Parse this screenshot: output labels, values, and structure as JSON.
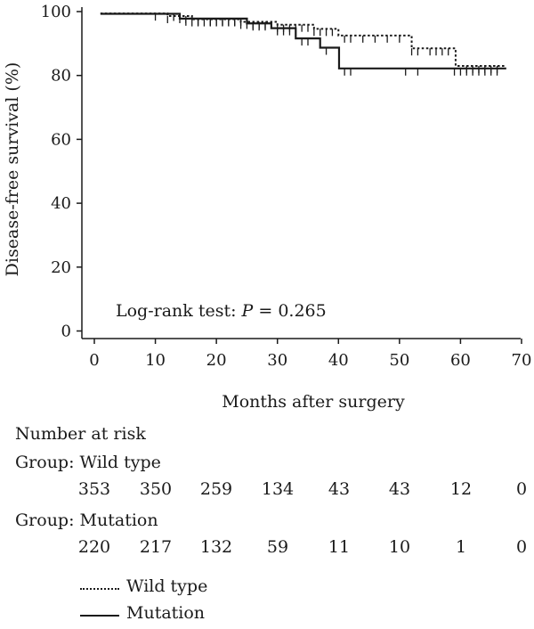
{
  "chart_data": {
    "type": "line",
    "xlabel": "Months after surgery",
    "ylabel": "Disease-free survival (%)",
    "xlim": [
      0,
      70
    ],
    "ylim": [
      0,
      100
    ],
    "xticks": [
      "0",
      "10",
      "20",
      "30",
      "40",
      "50",
      "60",
      "70"
    ],
    "yticks": [
      "0",
      "20",
      "40",
      "60",
      "80",
      "100"
    ],
    "grid": false,
    "annotation": {
      "prefix": "Log-rank test: ",
      "p": "P",
      "suffix": " = 0.265"
    },
    "series": [
      {
        "name": "Wild type",
        "style": "dotted",
        "color": "#1a1a1a",
        "steps": [
          [
            1,
            99.4
          ],
          [
            10,
            99.4
          ],
          [
            12,
            98.6
          ],
          [
            16,
            97.6
          ],
          [
            24,
            96.8
          ],
          [
            30,
            95.9
          ],
          [
            36,
            94.6
          ],
          [
            40,
            92.5
          ],
          [
            51,
            92.5
          ],
          [
            52,
            88.5
          ],
          [
            59,
            88.5
          ],
          [
            59.2,
            83
          ],
          [
            67.5,
            83
          ]
        ],
        "censors": [
          10,
          12,
          14,
          15,
          16,
          17,
          18,
          19,
          20,
          21,
          22,
          23,
          24,
          25,
          26,
          27,
          28,
          29,
          30,
          31,
          32,
          33,
          34,
          35,
          36,
          37,
          38,
          39,
          41,
          42,
          44,
          46,
          48,
          50,
          52,
          53,
          55,
          56,
          57,
          58,
          61,
          62,
          63,
          64,
          65,
          66
        ]
      },
      {
        "name": "Mutation",
        "style": "solid",
        "color": "#1a1a1a",
        "steps": [
          [
            1,
            99.3
          ],
          [
            12,
            99.3
          ],
          [
            14,
            97.8
          ],
          [
            25,
            96.3
          ],
          [
            29,
            94.8
          ],
          [
            33,
            91.6
          ],
          [
            37,
            88.7
          ],
          [
            40,
            88.7
          ],
          [
            40.1,
            82.2
          ],
          [
            67.5,
            82.2
          ]
        ],
        "censors": [
          13,
          15,
          17,
          19,
          20,
          21,
          22,
          23,
          24,
          26,
          27,
          28,
          30,
          31,
          32,
          34,
          35,
          38,
          41,
          42,
          51,
          53,
          59,
          60,
          61,
          62,
          63,
          64,
          65,
          66
        ]
      }
    ]
  },
  "risk_table": {
    "title": "Number at risk",
    "groups": [
      {
        "label": "Group: Wild type",
        "values": [
          "353",
          "350",
          "259",
          "134",
          "43",
          "43",
          "12",
          "0"
        ]
      },
      {
        "label": "Group: Mutation",
        "values": [
          "220",
          "217",
          "132",
          "59",
          "11",
          "10",
          "1",
          "0"
        ]
      }
    ]
  },
  "legend": {
    "items": [
      {
        "label": "Wild type",
        "style": "dotted"
      },
      {
        "label": "Mutation",
        "style": "solid"
      }
    ]
  }
}
